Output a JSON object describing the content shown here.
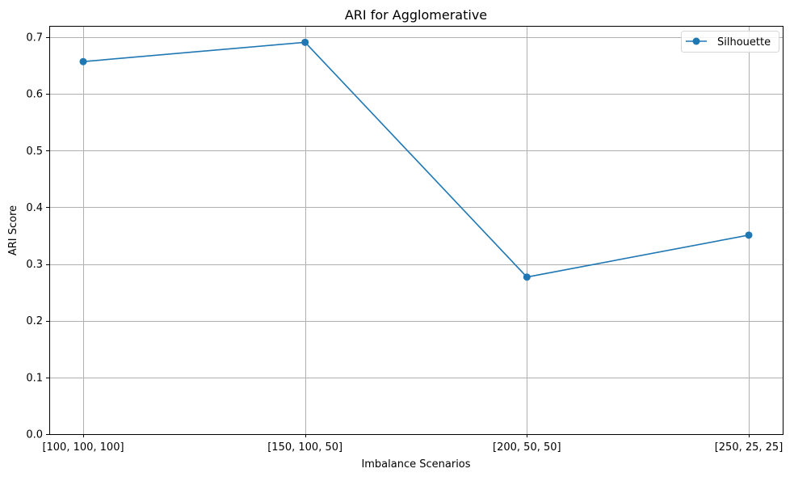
{
  "chart_data": {
    "type": "line",
    "title": "ARI for Agglomerative",
    "xlabel": "Imbalance Scenarios",
    "ylabel": "ARI Score",
    "categories": [
      "[100, 100, 100]",
      "[150, 100, 50]",
      "[200, 50, 50]",
      "[250, 25, 25]"
    ],
    "series": [
      {
        "name": "Silhouette",
        "values": [
          0.657,
          0.691,
          0.277,
          0.351
        ],
        "color": "#1f77b4",
        "marker": "circle"
      }
    ],
    "ylim": [
      0,
      0.72
    ],
    "yticks": [
      "0.0",
      "0.1",
      "0.2",
      "0.3",
      "0.4",
      "0.5",
      "0.6",
      "0.7"
    ],
    "ytick_values": [
      0,
      0.1,
      0.2,
      0.3,
      0.4,
      0.5,
      0.6,
      0.7
    ],
    "grid": true,
    "legend_position": "top-right"
  }
}
